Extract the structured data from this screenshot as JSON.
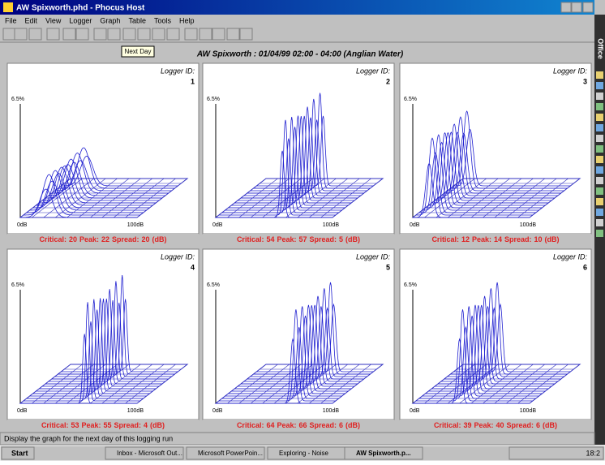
{
  "window": {
    "title": "AW Spixworth.phd - Phocus Host"
  },
  "menu": [
    "File",
    "Edit",
    "View",
    "Logger",
    "Graph",
    "Table",
    "Tools",
    "Help"
  ],
  "tooltip": "Next Day",
  "header": "AW Spixworth : 01/04/99 02:00 - 04:00 (Anglian Water)",
  "panel_labels": {
    "logger": "Logger ID:",
    "y_max": "6.5%",
    "x_min": "0dB",
    "x_max": "100dB",
    "critical": "Critical:",
    "peak": "Peak:",
    "spread": "Spread:",
    "unit": "(dB)"
  },
  "panels": [
    {
      "logger_id": 1,
      "critical": 20,
      "peak": 22,
      "spread": 20
    },
    {
      "logger_id": 2,
      "critical": 54,
      "peak": 57,
      "spread": 5
    },
    {
      "logger_id": 3,
      "critical": 12,
      "peak": 14,
      "spread": 10
    },
    {
      "logger_id": 4,
      "critical": 53,
      "peak": 55,
      "spread": 4
    },
    {
      "logger_id": 5,
      "critical": 64,
      "peak": 66,
      "spread": 6
    },
    {
      "logger_id": 6,
      "critical": 39,
      "peak": 40,
      "spread": 6
    }
  ],
  "status": "Display the graph for the next day of this logging run",
  "office_bar": "Office",
  "taskbar": {
    "start": "Start",
    "items": [
      "Inbox - Microsoft Out...",
      "Microsoft PowerPoin...",
      "Exploring - Noise",
      "AW Spixworth.p..."
    ],
    "clock": "18:2"
  }
}
